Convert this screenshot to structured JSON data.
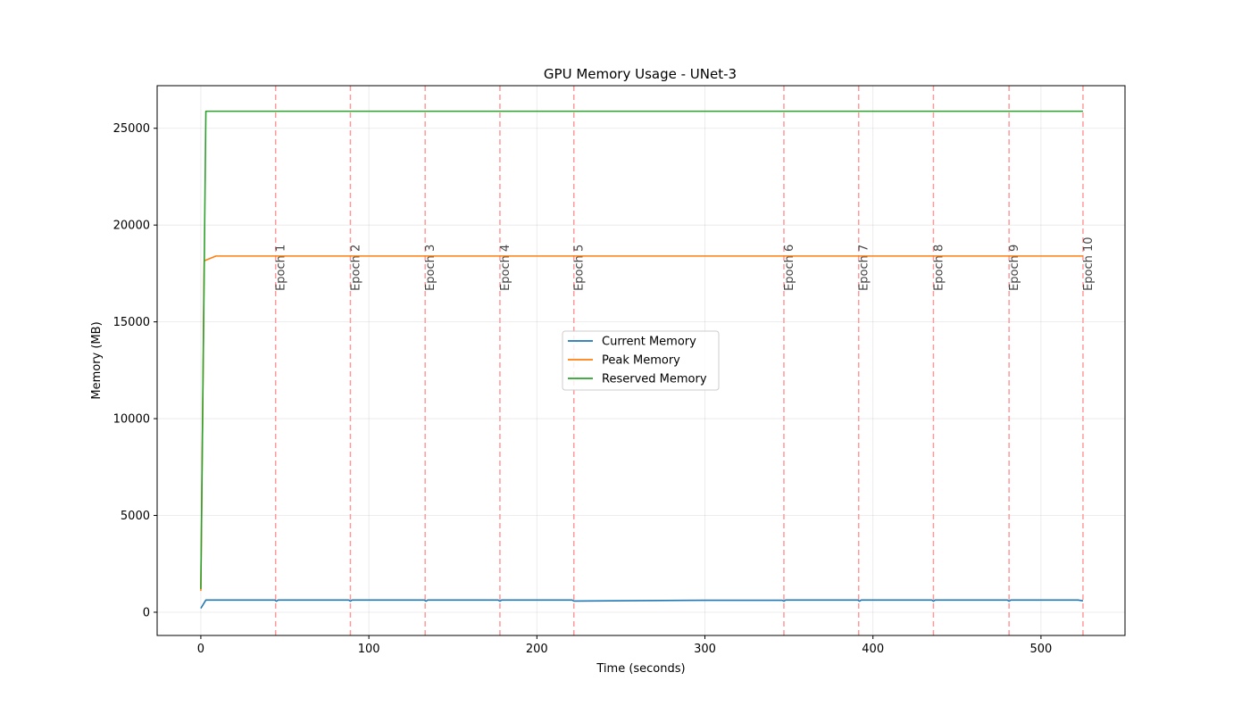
{
  "chart_data": {
    "type": "line",
    "title": "GPU Memory Usage - UNet-3",
    "xlabel": "Time (seconds)",
    "ylabel": "Memory (MB)",
    "xlim": [
      -26,
      550
    ],
    "ylim": [
      -1200,
      27200
    ],
    "xticks": [
      0,
      100,
      200,
      300,
      400,
      500
    ],
    "yticks": [
      0,
      5000,
      10000,
      15000,
      20000,
      25000
    ],
    "grid": true,
    "legend_position": "center",
    "series": [
      {
        "name": "Current Memory",
        "color": "#1f77b4",
        "x": [
          0,
          3,
          44,
          45,
          46,
          88,
          89,
          90,
          133,
          134,
          135,
          177,
          178,
          179,
          221,
          222,
          223,
          300,
          346,
          347,
          348,
          391,
          392,
          393,
          435,
          436,
          437,
          480,
          481,
          482,
          522,
          525
        ],
        "y": [
          200,
          630,
          630,
          570,
          630,
          630,
          570,
          630,
          630,
          570,
          630,
          630,
          570,
          630,
          630,
          580,
          580,
          620,
          620,
          570,
          630,
          630,
          570,
          630,
          630,
          570,
          630,
          630,
          570,
          630,
          630,
          590
        ]
      },
      {
        "name": "Peak Memory",
        "color": "#ff7f0e",
        "x": [
          0,
          2,
          9,
          525
        ],
        "y": [
          1100,
          18150,
          18400,
          18400
        ]
      },
      {
        "name": "Reserved Memory",
        "color": "#2ca02c",
        "x": [
          0,
          3,
          525
        ],
        "y": [
          1200,
          25880,
          25880
        ]
      }
    ],
    "epochs": [
      {
        "label": "Epoch 1",
        "x": 44.5
      },
      {
        "label": "Epoch 2",
        "x": 89
      },
      {
        "label": "Epoch 3",
        "x": 133.5
      },
      {
        "label": "Epoch 4",
        "x": 178
      },
      {
        "label": "Epoch 5",
        "x": 222
      },
      {
        "label": "Epoch 6",
        "x": 347
      },
      {
        "label": "Epoch 7",
        "x": 391.5
      },
      {
        "label": "Epoch 8",
        "x": 436
      },
      {
        "label": "Epoch 9",
        "x": 481
      },
      {
        "label": "Epoch 10",
        "x": 525
      }
    ],
    "epoch_line_color": "#ff9999"
  }
}
